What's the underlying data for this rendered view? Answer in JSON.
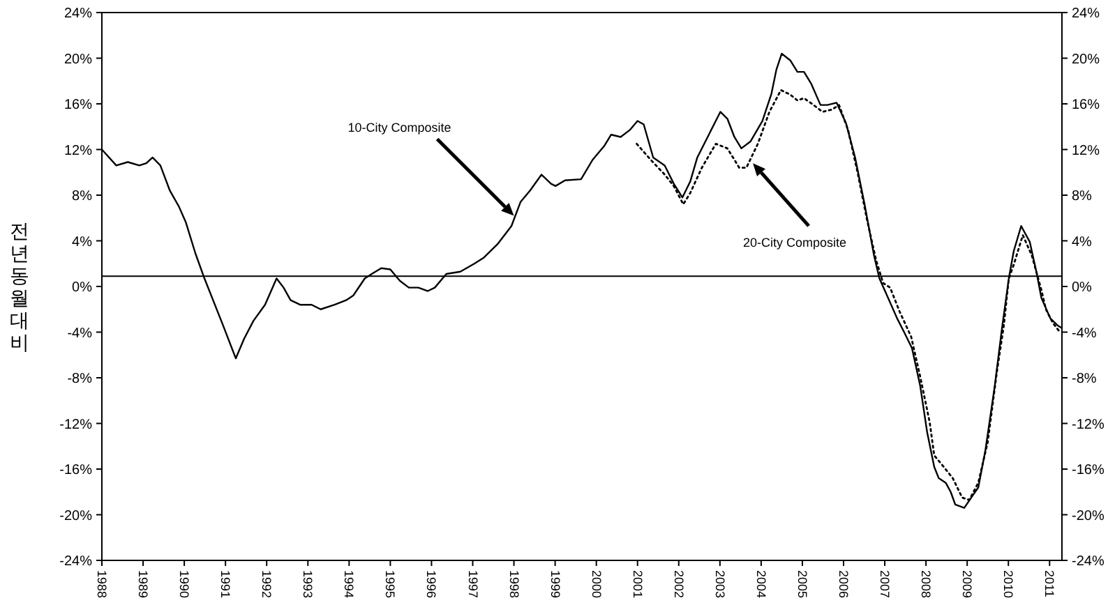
{
  "chart_data": {
    "type": "line",
    "ylabel": "전년동월대비",
    "xlim": [
      1988,
      2011.3
    ],
    "xticks": [
      1988,
      1989,
      1990,
      1991,
      1992,
      1993,
      1994,
      1995,
      1996,
      1997,
      1998,
      1999,
      2000,
      2001,
      2002,
      2003,
      2004,
      2005,
      2006,
      2007,
      2008,
      2009,
      2010,
      2011
    ],
    "ylim": [
      -24,
      24
    ],
    "yticks": [
      {
        "value": -24,
        "label": "-24%"
      },
      {
        "value": -20,
        "label": "-20%"
      },
      {
        "value": -16,
        "label": "-16%"
      },
      {
        "value": -12,
        "label": "-12%"
      },
      {
        "value": -8,
        "label": "-8%"
      },
      {
        "value": -4,
        "label": "-4%"
      },
      {
        "value": 0,
        "label": "0%"
      },
      {
        "value": 4,
        "label": "4%"
      },
      {
        "value": 8,
        "label": "8%"
      },
      {
        "value": 12,
        "label": "12%"
      },
      {
        "value": 16,
        "label": "16%"
      },
      {
        "value": 20,
        "label": "20%"
      },
      {
        "value": 24,
        "label": "24%"
      }
    ],
    "y2lim": [
      -24,
      24
    ],
    "y2ticks": [
      {
        "value": -24,
        "label": "-24%"
      },
      {
        "value": -20,
        "label": "-20%"
      },
      {
        "value": -16,
        "label": "-16%"
      },
      {
        "value": -12,
        "label": "-12%"
      },
      {
        "value": -8,
        "label": "-8%"
      },
      {
        "value": -4,
        "label": "-4%"
      },
      {
        "value": 0,
        "label": "0%"
      },
      {
        "value": 4,
        "label": "4%"
      },
      {
        "value": 8,
        "label": "8%"
      },
      {
        "value": 12,
        "label": "12%"
      },
      {
        "value": 16,
        "label": "16%"
      },
      {
        "value": 20,
        "label": "20%"
      },
      {
        "value": 24,
        "label": "24%"
      }
    ],
    "grid": false,
    "marker": "none",
    "ref_lines": [
      {
        "axis": "y",
        "value": 0.9,
        "color": "#000000"
      }
    ],
    "annotations": [
      {
        "text": "10-City Composite",
        "x": 1998.0,
        "y": 6.2
      },
      {
        "text": "20-City Composite",
        "x": 2003.8,
        "y": 10.8
      }
    ],
    "series": [
      {
        "color": "#000000",
        "line_style": "solid",
        "x": [
          1988.0,
          1988.35,
          1988.63,
          1988.91,
          1989.08,
          1989.23,
          1989.42,
          1989.65,
          1989.87,
          1990.04,
          1990.27,
          1990.49,
          1990.94,
          1991.25,
          1991.45,
          1991.68,
          1991.96,
          1992.24,
          1992.41,
          1992.58,
          1992.81,
          1993.09,
          1993.31,
          1993.65,
          1993.93,
          1994.1,
          1994.38,
          1994.55,
          1994.78,
          1995.0,
          1995.23,
          1995.45,
          1995.68,
          1995.91,
          1996.08,
          1996.36,
          1996.7,
          1997.04,
          1997.26,
          1997.6,
          1997.94,
          1998.16,
          1998.39,
          1998.67,
          1998.9,
          1999.01,
          1999.24,
          1999.63,
          1999.91,
          2000.19,
          2000.36,
          2000.59,
          2000.81,
          2001.0,
          2001.15,
          2001.38,
          2001.66,
          2001.88,
          2002.09,
          2002.28,
          2002.45,
          2002.73,
          2003.01,
          2003.18,
          2003.35,
          2003.52,
          2003.74,
          2004.03,
          2004.25,
          2004.37,
          2004.5,
          2004.71,
          2004.88,
          2005.04,
          2005.21,
          2005.44,
          2005.61,
          2005.83,
          2006.06,
          2006.28,
          2006.51,
          2006.74,
          2006.87,
          2007.13,
          2007.3,
          2007.47,
          2007.66,
          2007.86,
          2008.03,
          2008.2,
          2008.31,
          2008.48,
          2008.6,
          2008.71,
          2008.93,
          2009.1,
          2009.27,
          2009.44,
          2009.67,
          2009.84,
          2010.01,
          2010.13,
          2010.31,
          2010.52,
          2010.69,
          2010.8,
          2011.02,
          2011.19,
          2011.28
        ],
        "values": [
          12.0,
          10.6,
          10.9,
          10.6,
          10.8,
          11.3,
          10.6,
          8.4,
          7.0,
          5.6,
          2.9,
          0.7,
          -3.4,
          -6.3,
          -4.6,
          -3.0,
          -1.6,
          0.7,
          -0.1,
          -1.2,
          -1.6,
          -1.6,
          -2.0,
          -1.6,
          -1.2,
          -0.8,
          0.7,
          1.1,
          1.6,
          1.5,
          0.5,
          -0.1,
          -0.1,
          -0.4,
          -0.1,
          1.1,
          1.3,
          2.0,
          2.5,
          3.7,
          5.3,
          7.4,
          8.4,
          9.8,
          9.0,
          8.8,
          9.3,
          9.4,
          11.1,
          12.3,
          13.3,
          13.1,
          13.7,
          14.5,
          14.2,
          11.3,
          10.6,
          9.0,
          7.8,
          9.2,
          11.3,
          13.3,
          15.3,
          14.7,
          13.1,
          12.1,
          12.7,
          14.5,
          16.9,
          19.0,
          20.4,
          19.8,
          18.8,
          18.8,
          17.8,
          15.9,
          15.9,
          16.1,
          14.3,
          11.3,
          7.2,
          2.7,
          0.7,
          -1.4,
          -2.8,
          -4.0,
          -5.4,
          -8.7,
          -12.8,
          -15.8,
          -16.8,
          -17.2,
          -18.0,
          -19.1,
          -19.4,
          -18.5,
          -17.6,
          -14.4,
          -8.7,
          -3.8,
          0.7,
          3.1,
          5.3,
          3.9,
          1.1,
          -1.0,
          -2.8,
          -3.4,
          -3.6
        ]
      },
      {
        "color": "#000000",
        "line_style": "dotted",
        "x": [
          2000.98,
          2001.32,
          2001.66,
          2001.88,
          2002.11,
          2002.28,
          2002.56,
          2002.9,
          2003.18,
          2003.47,
          2003.64,
          2003.92,
          2004.2,
          2004.48,
          2004.71,
          2004.88,
          2005.04,
          2005.27,
          2005.49,
          2005.72,
          2005.89,
          2006.11,
          2006.34,
          2006.56,
          2006.79,
          2006.96,
          2007.13,
          2007.36,
          2007.64,
          2007.86,
          2008.09,
          2008.2,
          2008.43,
          2008.65,
          2008.88,
          2009.05,
          2009.27,
          2009.5,
          2009.72,
          2009.89,
          2010.01,
          2010.13,
          2010.35,
          2010.57,
          2010.8,
          2010.91,
          2011.08,
          2011.25
        ],
        "values": [
          12.5,
          11.1,
          9.8,
          8.8,
          7.2,
          8.2,
          10.4,
          12.5,
          12.1,
          10.4,
          10.4,
          12.5,
          15.3,
          17.2,
          16.8,
          16.3,
          16.5,
          15.9,
          15.3,
          15.5,
          15.9,
          13.7,
          10.0,
          6.0,
          2.3,
          0.3,
          -0.1,
          -2.2,
          -4.4,
          -7.9,
          -11.9,
          -14.8,
          -15.8,
          -16.8,
          -18.5,
          -18.7,
          -17.2,
          -13.6,
          -7.5,
          -3.4,
          0.7,
          1.9,
          4.5,
          2.7,
          -0.3,
          -2.0,
          -3.2,
          -4.0
        ]
      }
    ]
  }
}
